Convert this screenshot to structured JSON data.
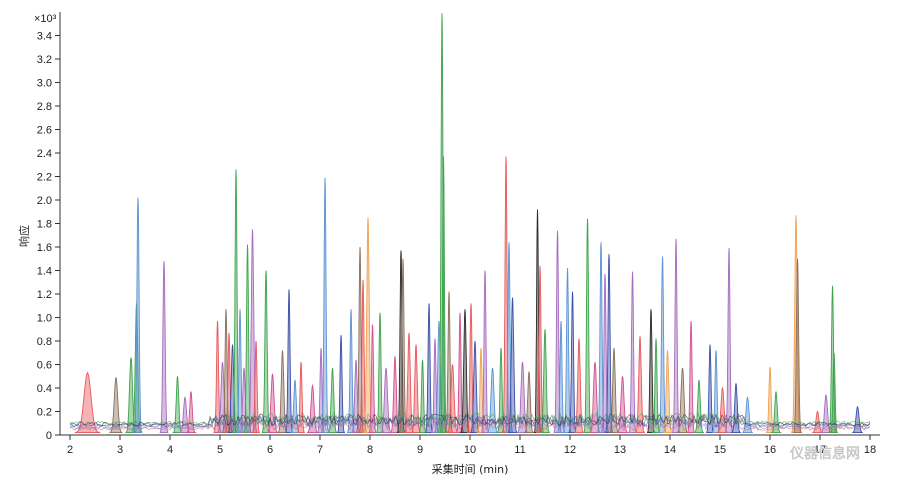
{
  "chart_data": {
    "type": "area",
    "xlabel": "采集时间 (min)",
    "ylabel": "响应",
    "multiplier": "×10³",
    "xlim": [
      1.8,
      18.2
    ],
    "ylim": [
      0,
      3.6
    ],
    "x_ticks": [
      "2",
      "3",
      "4",
      "5",
      "6",
      "7",
      "8",
      "9",
      "10",
      "11",
      "12",
      "13",
      "14",
      "15",
      "16",
      "17",
      "18"
    ],
    "y_ticks": [
      "0",
      "0.2",
      "0.4",
      "0.6",
      "0.8",
      "1.0",
      "1.2",
      "1.4",
      "1.6",
      "1.8",
      "2.0",
      "2.2",
      "2.4",
      "2.6",
      "2.8",
      "3.0",
      "3.2",
      "3.4"
    ],
    "palette": [
      "#e8575b",
      "#3fa34d",
      "#5b93d3",
      "#a56bbf",
      "#f0a050",
      "#8b6f5a",
      "#3b4fa8",
      "#d05090",
      "#2a2a2a",
      "#4db8b0"
    ],
    "peaks": [
      [
        2.35,
        0.51,
        0.07,
        0
      ],
      [
        2.92,
        0.47,
        0.035,
        5
      ],
      [
        3.22,
        0.64,
        0.03,
        1
      ],
      [
        3.33,
        1.1,
        0.025,
        1
      ],
      [
        3.36,
        2.0,
        0.022,
        2
      ],
      [
        3.88,
        1.46,
        0.022,
        3
      ],
      [
        4.15,
        0.48,
        0.025,
        1
      ],
      [
        4.3,
        0.3,
        0.03,
        3
      ],
      [
        4.42,
        0.35,
        0.025,
        7
      ],
      [
        4.95,
        0.95,
        0.02,
        0
      ],
      [
        5.05,
        0.6,
        0.03,
        3
      ],
      [
        5.12,
        1.05,
        0.02,
        5
      ],
      [
        5.18,
        0.85,
        0.02,
        0
      ],
      [
        5.25,
        0.75,
        0.025,
        6
      ],
      [
        5.32,
        2.24,
        0.02,
        1
      ],
      [
        5.4,
        1.05,
        0.02,
        2
      ],
      [
        5.48,
        0.55,
        0.025,
        3
      ],
      [
        5.55,
        1.6,
        0.02,
        1
      ],
      [
        5.65,
        1.73,
        0.025,
        3
      ],
      [
        5.72,
        0.78,
        0.02,
        0
      ],
      [
        5.92,
        1.38,
        0.022,
        1
      ],
      [
        6.05,
        0.5,
        0.03,
        7
      ],
      [
        6.25,
        0.7,
        0.025,
        5
      ],
      [
        6.38,
        1.22,
        0.02,
        6
      ],
      [
        6.5,
        0.45,
        0.025,
        2
      ],
      [
        6.62,
        0.6,
        0.02,
        0
      ],
      [
        6.85,
        0.4,
        0.03,
        7
      ],
      [
        7.02,
        0.72,
        0.02,
        3
      ],
      [
        7.1,
        2.17,
        0.02,
        2
      ],
      [
        7.25,
        0.55,
        0.025,
        1
      ],
      [
        7.42,
        0.83,
        0.02,
        6
      ],
      [
        7.62,
        1.05,
        0.02,
        2
      ],
      [
        7.72,
        0.62,
        0.025,
        3
      ],
      [
        7.8,
        1.58,
        0.02,
        5
      ],
      [
        7.86,
        1.3,
        0.02,
        0
      ],
      [
        7.96,
        1.83,
        0.025,
        4
      ],
      [
        8.05,
        0.92,
        0.02,
        7
      ],
      [
        8.2,
        1.02,
        0.02,
        1
      ],
      [
        8.32,
        0.55,
        0.03,
        3
      ],
      [
        8.5,
        0.65,
        0.025,
        7
      ],
      [
        8.62,
        1.55,
        0.02,
        8
      ],
      [
        8.66,
        1.48,
        0.02,
        5
      ],
      [
        8.78,
        0.85,
        0.025,
        0
      ],
      [
        8.92,
        0.75,
        0.025,
        0
      ],
      [
        9.05,
        0.62,
        0.02,
        1
      ],
      [
        9.18,
        1.1,
        0.02,
        6
      ],
      [
        9.3,
        0.8,
        0.02,
        3
      ],
      [
        9.38,
        0.95,
        0.025,
        2
      ],
      [
        9.44,
        3.57,
        0.02,
        1
      ],
      [
        9.47,
        2.35,
        0.018,
        1
      ],
      [
        9.58,
        1.2,
        0.02,
        5
      ],
      [
        9.65,
        0.58,
        0.03,
        0
      ],
      [
        9.8,
        1.02,
        0.02,
        7
      ],
      [
        9.9,
        1.05,
        0.025,
        8
      ],
      [
        10.02,
        1.1,
        0.02,
        0
      ],
      [
        10.1,
        0.78,
        0.025,
        6
      ],
      [
        10.22,
        0.72,
        0.02,
        4
      ],
      [
        10.3,
        1.38,
        0.02,
        3
      ],
      [
        10.45,
        0.55,
        0.03,
        2
      ],
      [
        10.62,
        0.72,
        0.02,
        1
      ],
      [
        10.72,
        2.35,
        0.02,
        0
      ],
      [
        10.78,
        1.62,
        0.02,
        2
      ],
      [
        10.85,
        1.15,
        0.025,
        6
      ],
      [
        11.05,
        0.6,
        0.03,
        3
      ],
      [
        11.18,
        0.52,
        0.025,
        5
      ],
      [
        11.35,
        1.9,
        0.018,
        8
      ],
      [
        11.4,
        1.42,
        0.02,
        0
      ],
      [
        11.5,
        0.88,
        0.025,
        1
      ],
      [
        11.75,
        1.72,
        0.02,
        3
      ],
      [
        11.82,
        0.95,
        0.02,
        2
      ],
      [
        11.95,
        1.4,
        0.02,
        2
      ],
      [
        12.05,
        1.2,
        0.02,
        6
      ],
      [
        12.18,
        0.8,
        0.025,
        0
      ],
      [
        12.35,
        1.82,
        0.02,
        1
      ],
      [
        12.5,
        0.6,
        0.03,
        7
      ],
      [
        12.62,
        1.62,
        0.02,
        2
      ],
      [
        12.7,
        1.35,
        0.02,
        3
      ],
      [
        12.78,
        1.52,
        0.02,
        6
      ],
      [
        12.88,
        0.72,
        0.025,
        5
      ],
      [
        13.05,
        0.48,
        0.03,
        7
      ],
      [
        13.25,
        1.37,
        0.02,
        3
      ],
      [
        13.4,
        0.82,
        0.025,
        0
      ],
      [
        13.62,
        1.05,
        0.02,
        8
      ],
      [
        13.72,
        0.8,
        0.02,
        1
      ],
      [
        13.85,
        1.5,
        0.02,
        2
      ],
      [
        13.95,
        0.7,
        0.025,
        4
      ],
      [
        14.12,
        1.65,
        0.02,
        3
      ],
      [
        14.25,
        0.55,
        0.03,
        5
      ],
      [
        14.42,
        0.95,
        0.02,
        7
      ],
      [
        14.58,
        0.45,
        0.025,
        1
      ],
      [
        14.8,
        0.75,
        0.02,
        6
      ],
      [
        14.92,
        0.7,
        0.02,
        2
      ],
      [
        15.05,
        0.38,
        0.03,
        0
      ],
      [
        15.18,
        1.57,
        0.02,
        3
      ],
      [
        15.32,
        0.42,
        0.025,
        6
      ],
      [
        15.55,
        0.3,
        0.03,
        2
      ],
      [
        16.0,
        0.56,
        0.022,
        4
      ],
      [
        16.12,
        0.35,
        0.025,
        1
      ],
      [
        16.52,
        1.85,
        0.025,
        4
      ],
      [
        16.55,
        1.48,
        0.022,
        5
      ],
      [
        16.95,
        0.18,
        0.03,
        0
      ],
      [
        17.12,
        0.32,
        0.03,
        3
      ],
      [
        17.25,
        1.25,
        0.02,
        1
      ],
      [
        17.28,
        0.68,
        0.02,
        1
      ],
      [
        17.75,
        0.22,
        0.03,
        6
      ]
    ]
  },
  "watermark": "仪器信息网"
}
